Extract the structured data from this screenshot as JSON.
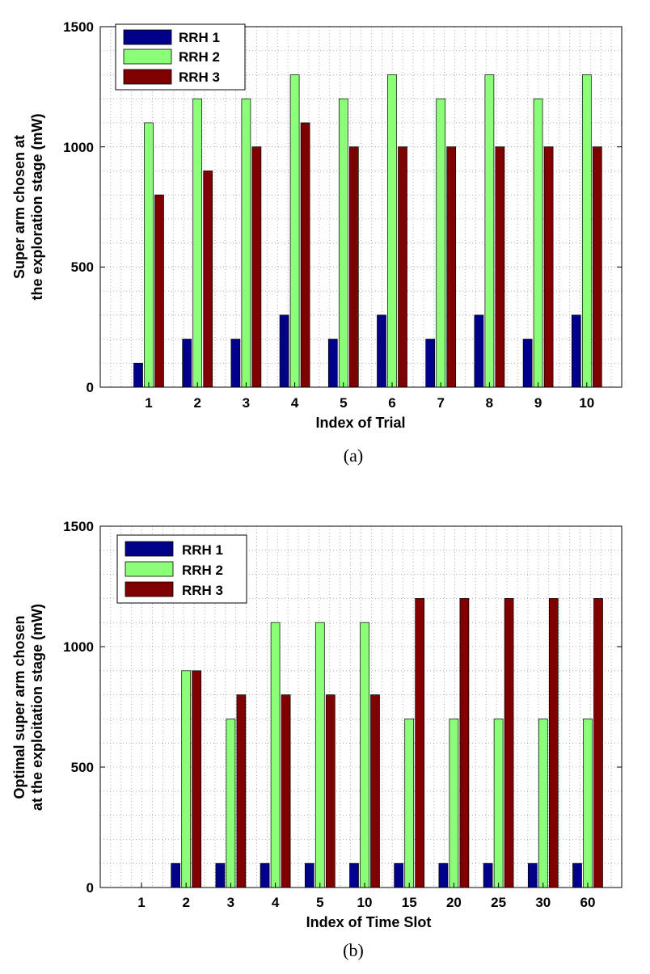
{
  "chart_data": [
    {
      "type": "bar",
      "caption": "(a)",
      "categories": [
        "1",
        "2",
        "3",
        "4",
        "5",
        "6",
        "7",
        "8",
        "9",
        "10"
      ],
      "series": [
        {
          "name": "RRH 1",
          "color": "#00008b",
          "values": [
            100,
            200,
            200,
            300,
            200,
            300,
            200,
            300,
            200,
            300
          ]
        },
        {
          "name": "RRH 2",
          "color": "#8cff78",
          "values": [
            1100,
            1200,
            1200,
            1300,
            1200,
            1300,
            1200,
            1300,
            1200,
            1300
          ]
        },
        {
          "name": "RRH 3",
          "color": "#800000",
          "values": [
            800,
            900,
            1000,
            1100,
            1000,
            1000,
            1000,
            1000,
            1000,
            1000
          ]
        }
      ],
      "xlabel": "Index of Trial",
      "ylabel_lines": [
        "Super arm chosen at",
        "the exploration stage (mW)"
      ],
      "ylim": [
        0,
        1500
      ],
      "yticks": [
        "0",
        "500",
        "1000",
        "1500"
      ],
      "grid": true,
      "legend_position": "top-left"
    },
    {
      "type": "bar",
      "caption": "(b)",
      "categories": [
        "1",
        "2",
        "3",
        "4",
        "5",
        "10",
        "15",
        "20",
        "25",
        "30",
        "60"
      ],
      "series": [
        {
          "name": "RRH 1",
          "color": "#00008b",
          "values": [
            0,
            100,
            100,
            100,
            100,
            100,
            100,
            100,
            100,
            100,
            100
          ]
        },
        {
          "name": "RRH 2",
          "color": "#8cff78",
          "values": [
            0,
            900,
            700,
            1100,
            1100,
            1100,
            700,
            700,
            700,
            700,
            700
          ]
        },
        {
          "name": "RRH 3",
          "color": "#800000",
          "values": [
            0,
            900,
            800,
            800,
            800,
            800,
            1200,
            1200,
            1200,
            1200,
            1200
          ]
        }
      ],
      "xlabel": "Index of Time Slot",
      "ylabel_lines": [
        "Optimal super arm chosen",
        "at the exploitation stage (mW)"
      ],
      "ylim": [
        0,
        1500
      ],
      "yticks": [
        "0",
        "500",
        "1000",
        "1500"
      ],
      "grid": true,
      "legend_position": "top-left"
    }
  ]
}
